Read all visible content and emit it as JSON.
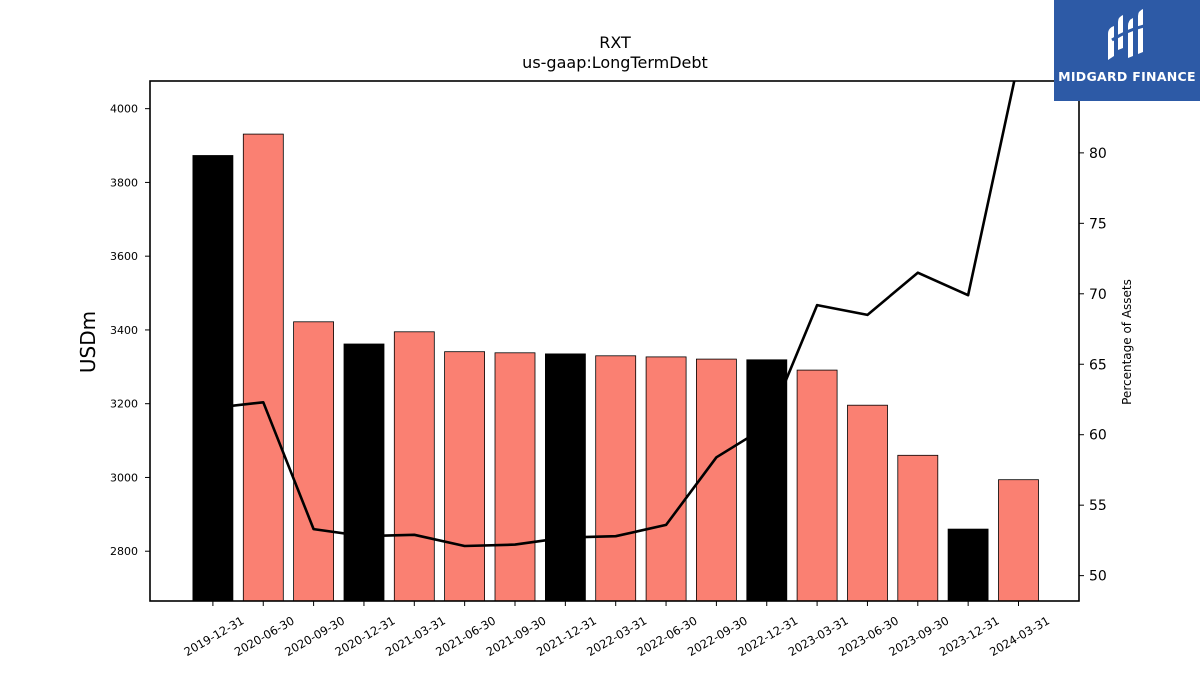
{
  "brand": {
    "name": "MIDGARD FINANCE",
    "background": "#2d5aa6"
  },
  "chart_data": {
    "type": "bar",
    "title": "RXT",
    "subtitle": "us-gaap:LongTermDebt",
    "ylabel": "USDm",
    "y2label": "Percentage of Assets",
    "ylim": [
      2665,
      4075
    ],
    "y2lim": [
      48.2,
      85.1
    ],
    "yticks": [
      2800,
      3000,
      3200,
      3400,
      3600,
      3800,
      4000
    ],
    "y2ticks": [
      50,
      55,
      60,
      65,
      70,
      75,
      80
    ],
    "categories": [
      "2019-12-31",
      "2020-06-30",
      "2020-09-30",
      "2020-12-31",
      "2021-03-31",
      "2021-06-30",
      "2021-09-30",
      "2021-12-31",
      "2022-03-31",
      "2022-06-30",
      "2022-09-30",
      "2022-12-31",
      "2023-03-31",
      "2023-06-30",
      "2023-09-30",
      "2023-12-31",
      "2024-03-31"
    ],
    "values": [
      3873,
      3931,
      3422,
      3362,
      3395,
      3341,
      3338,
      3335,
      3330,
      3327,
      3321,
      3319,
      3291,
      3196,
      3060,
      2860,
      2994
    ],
    "bar_colors": [
      "#000000",
      "#fa8072",
      "#fa8072",
      "#000000",
      "#fa8072",
      "#fa8072",
      "#fa8072",
      "#000000",
      "#fa8072",
      "#fa8072",
      "#fa8072",
      "#000000",
      "#fa8072",
      "#fa8072",
      "#fa8072",
      "#000000",
      "#fa8072"
    ],
    "line_values": [
      61.9,
      62.3,
      53.3,
      52.8,
      52.9,
      52.1,
      52.2,
      52.7,
      52.8,
      53.6,
      58.4,
      60.6,
      69.2,
      68.5,
      71.5,
      69.9,
      86.5
    ],
    "line_color": "#000000",
    "grid": false
  }
}
